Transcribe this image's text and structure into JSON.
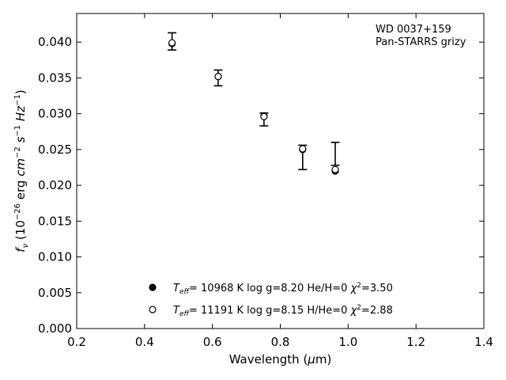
{
  "chart_data": {
    "type": "scatter",
    "title": "",
    "xlabel": "Wavelength (μm)",
    "ylabel": "f_ν (10^-26 erg cm^-2 s^-1 Hz^-1)",
    "xlim": [
      0.2,
      1.4
    ],
    "ylim": [
      0.0,
      0.044
    ],
    "xticks": [
      "0.2",
      "0.4",
      "0.6",
      "0.8",
      "1.0",
      "1.2",
      "1.4"
    ],
    "yticks": [
      "0.000",
      "0.005",
      "0.010",
      "0.015",
      "0.020",
      "0.025",
      "0.030",
      "0.035",
      "0.040"
    ],
    "grid": false,
    "annotation": [
      "WD 0037+159",
      "Pan-STARRS grizy"
    ],
    "observed": {
      "x": [
        0.481,
        0.617,
        0.752,
        0.866,
        0.962
      ],
      "y": [
        0.0401,
        0.035,
        0.0292,
        0.0239,
        0.0244
      ],
      "yerr": [
        0.0012,
        0.0011,
        0.0009,
        0.0017,
        0.0016
      ]
    },
    "series": [
      {
        "name": "T_eff= 10968 K  log g=8.20  He/H=0  χ²=3.50",
        "marker": "filled-circle",
        "x": [
          0.481,
          0.617,
          0.752,
          0.866,
          0.962
        ],
        "y": [
          0.0398,
          0.0352,
          0.0297,
          0.025,
          0.022
        ]
      },
      {
        "name": "T_eff= 11191 K  log g=8.15  H/He=0  χ²=2.88",
        "marker": "open-circle",
        "x": [
          0.481,
          0.617,
          0.752,
          0.866,
          0.962
        ],
        "y": [
          0.0399,
          0.0352,
          0.0296,
          0.0251,
          0.0222
        ]
      }
    ],
    "legend_position": "bottom-center",
    "colors": {
      "marker": "#000000",
      "axes": "#000000",
      "background": "#ffffff"
    }
  }
}
